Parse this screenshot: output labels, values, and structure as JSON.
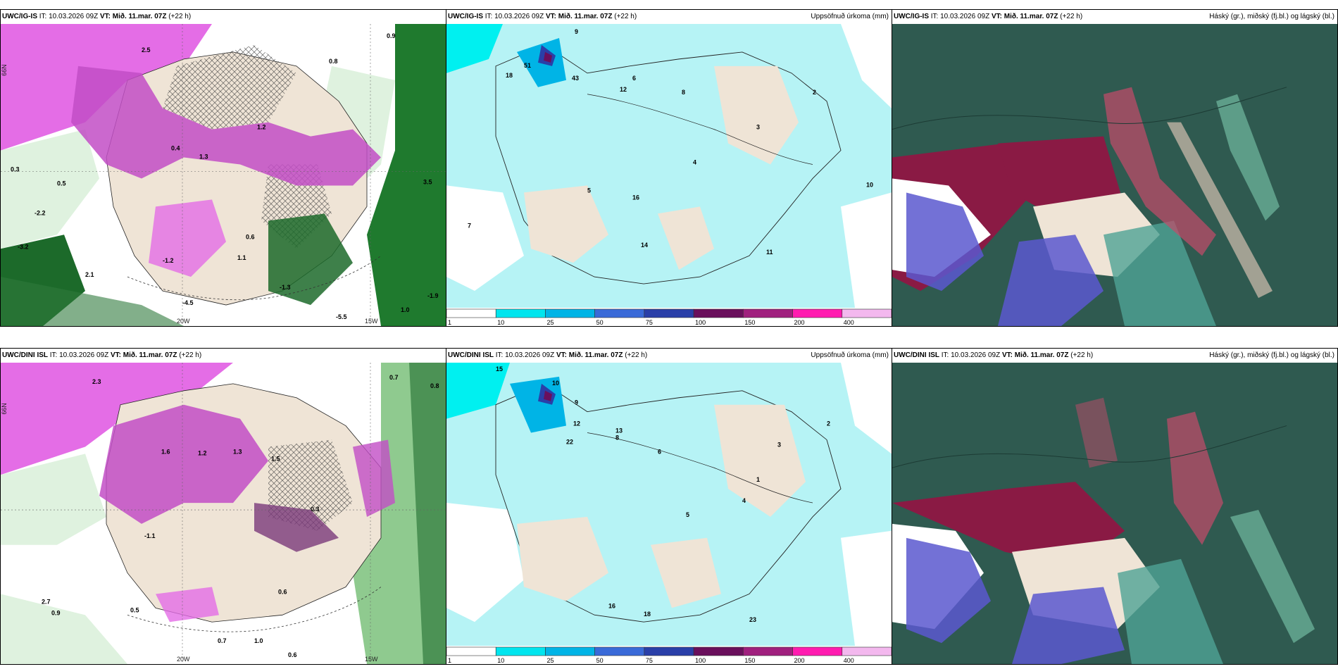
{
  "rows": [
    {
      "model": "UWC/IG-IS",
      "panels": [
        {
          "model": "UWC/IG-IS",
          "it": "IT: 10.03.2026 09Z",
          "vt": "VT: Mið. 11.mar. 07Z",
          "lead": "(+22 h)",
          "right": ""
        },
        {
          "model": "UWC/IG-IS",
          "it": "IT: 10.03.2026 09Z",
          "vt": "VT: Mið. 11.mar. 07Z",
          "lead": "(+22 h)",
          "right": "Uppsöfnuð úrkoma (mm)"
        },
        {
          "model": "UWC/IG-IS",
          "it": "IT: 10.03.2026 09Z",
          "vt": "VT: Mið. 11.mar. 07Z",
          "lead": "(+22 h)",
          "right": "Háský (gr.), miðský (fj.bl.) og lágský (bl.)"
        }
      ],
      "lon_labels": [
        "20W",
        "15W"
      ],
      "lat_label": "66N",
      "temp_values": [
        "0.9",
        "2.5",
        "1.3",
        "0.4",
        "0.8",
        "1.2",
        "-1.2",
        "-3.2",
        "-4.5",
        "0.5",
        "1.1",
        "0.6",
        "-2.2",
        "3.5",
        "-1.9",
        "1.0",
        "-5.5",
        "0.3",
        "2.1",
        "-1.3"
      ],
      "precip_values": [
        "12",
        "9",
        "8",
        "6",
        "5",
        "4",
        "3",
        "2",
        "16",
        "51",
        "43",
        "18",
        "7",
        "11",
        "10",
        "14"
      ]
    },
    {
      "model": "UWC/DINI ISL",
      "panels": [
        {
          "model": "UWC/DINI ISL",
          "it": "IT: 10.03.2026 09Z",
          "vt": "VT: Mið. 11.mar. 07Z",
          "lead": "(+22 h)",
          "right": ""
        },
        {
          "model": "UWC/DINI ISL",
          "it": "IT: 10.03.2026 09Z",
          "vt": "VT: Mið. 11.mar. 07Z",
          "lead": "(+22 h)",
          "right": "Uppsöfnuð úrkoma (mm)"
        },
        {
          "model": "UWC/DINI ISL",
          "it": "IT: 10.03.2026 09Z",
          "vt": "VT: Mið. 11.mar. 07Z",
          "lead": "(+22 h)",
          "right": "Háský (gr.), miðský (fj.bl.) og lágský (bl.)"
        }
      ],
      "lon_labels": [
        "20W",
        "15W"
      ],
      "lat_label": "66N",
      "temp_values": [
        "0.7",
        "0.9",
        "0.5",
        "2.7",
        "1.6",
        "1.3",
        "0.6",
        "-1.1",
        "0.8",
        "2.3",
        "1.0",
        "0.7",
        "0.6",
        "1.5",
        "0.3",
        "1.2"
      ],
      "precip_values": [
        "15",
        "10",
        "9",
        "8",
        "6",
        "5",
        "4",
        "3",
        "2",
        "1",
        "12",
        "13",
        "16",
        "18",
        "22",
        "23"
      ]
    }
  ],
  "legend": {
    "ticks": [
      "1",
      "10",
      "25",
      "50",
      "75",
      "100",
      "150",
      "200",
      "400"
    ],
    "colors": [
      "#ffffff",
      "#00e5ee",
      "#00b4e6",
      "#3a6ad8",
      "#2a3fa8",
      "#6a0f5c",
      "#a0207e",
      "#ff1cb0",
      "#f3b8ee"
    ]
  },
  "colors": {
    "land": "#efe4d6",
    "sea_precip": "#b6f3f5",
    "cyan": "#00f0f0",
    "magenta": "#d65ad8",
    "green": "#2f7a3c",
    "cloud_high": "#2f5a50",
    "cloud_mid": "#8a1a44",
    "cloud_low": "#5a58cf"
  }
}
